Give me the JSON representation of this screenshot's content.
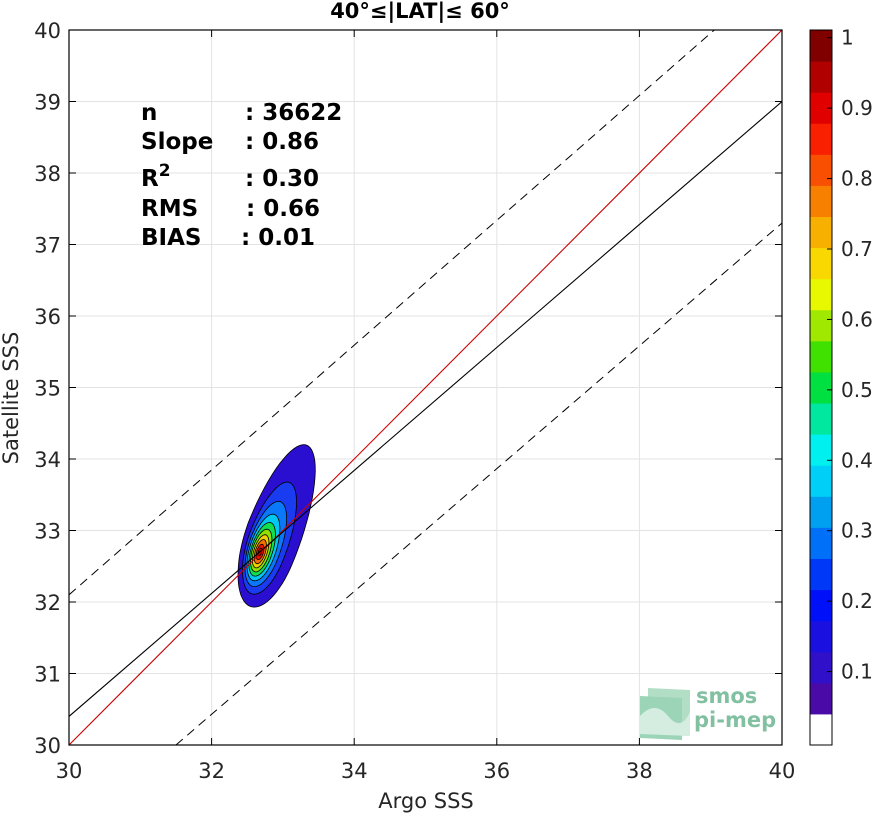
{
  "chart_data": {
    "type": "contour-scatter",
    "title": "40°≤|LAT|≤ 60°",
    "xlabel": "Argo SSS",
    "ylabel": "Satellite SSS",
    "xlim": [
      30,
      40
    ],
    "ylim": [
      30,
      40
    ],
    "xticks": [
      30,
      32,
      34,
      36,
      38,
      40
    ],
    "yticks": [
      30,
      31,
      32,
      33,
      34,
      35,
      36,
      37,
      38,
      39,
      40
    ],
    "grid": true,
    "stats": [
      {
        "key": "n",
        "value": ": 36622"
      },
      {
        "key": "Slope",
        "value": ": 0.86"
      },
      {
        "key": "R",
        "sup": "2",
        "value": ": 0.30"
      },
      {
        "key": "RMS",
        "value": ": 0.66"
      },
      {
        "key": "BIAS",
        "value": ": 0.01"
      }
    ],
    "lines": [
      {
        "name": "one-to-one",
        "style": "solid",
        "color": "#cc0000",
        "points": [
          [
            30,
            30
          ],
          [
            40,
            40
          ]
        ]
      },
      {
        "name": "regression",
        "style": "solid",
        "color": "#000000",
        "points": [
          [
            30,
            30.4
          ],
          [
            40,
            39.0
          ]
        ]
      },
      {
        "name": "upper-bound",
        "style": "dashed",
        "color": "#000000",
        "points": [
          [
            30,
            32.1
          ],
          [
            39.05,
            40
          ]
        ]
      },
      {
        "name": "lower-bound",
        "style": "dashed",
        "color": "#000000",
        "points": [
          [
            31.5,
            30
          ],
          [
            40,
            37.3
          ]
        ]
      }
    ],
    "density_center": [
      32.68,
      32.7
    ],
    "density_levels": [
      {
        "level": 0.1,
        "color": "#2a0fd0",
        "rx": 1.05,
        "ry": 0.82,
        "offset": [
          0.45,
          0.45
        ]
      },
      {
        "level": 0.2,
        "color": "#1a3cf0",
        "rx": 0.78,
        "ry": 0.6,
        "offset": [
          0.28,
          0.28
        ]
      },
      {
        "level": 0.3,
        "color": "#0a78f8",
        "rx": 0.62,
        "ry": 0.48,
        "offset": [
          0.18,
          0.18
        ]
      },
      {
        "level": 0.4,
        "color": "#00c8f0",
        "rx": 0.5,
        "ry": 0.39,
        "offset": [
          0.11,
          0.11
        ]
      },
      {
        "level": 0.5,
        "color": "#10e050",
        "rx": 0.41,
        "ry": 0.32,
        "offset": [
          0.07,
          0.07
        ]
      },
      {
        "level": 0.6,
        "color": "#90e000",
        "rx": 0.33,
        "ry": 0.26,
        "offset": [
          0.04,
          0.04
        ]
      },
      {
        "level": 0.7,
        "color": "#f0d000",
        "rx": 0.26,
        "ry": 0.2,
        "offset": [
          0.02,
          0.02
        ]
      },
      {
        "level": 0.8,
        "color": "#f07000",
        "rx": 0.19,
        "ry": 0.15,
        "offset": [
          0.01,
          0.01
        ]
      },
      {
        "level": 0.9,
        "color": "#f01000",
        "rx": 0.12,
        "ry": 0.1,
        "offset": [
          0.0,
          0.0
        ]
      },
      {
        "level": 1.0,
        "color": "#c00000",
        "rx": 0.06,
        "ry": 0.05,
        "offset": [
          0.0,
          0.0
        ]
      }
    ],
    "colorbar": {
      "ticks": [
        "0.1",
        "0.2",
        "0.3",
        "0.4",
        "0.5",
        "0.6",
        "0.7",
        "0.8",
        "0.9",
        "1"
      ],
      "tick_values": [
        0.1,
        0.2,
        0.3,
        0.4,
        0.5,
        0.6,
        0.7,
        0.8,
        0.9,
        1.0
      ],
      "colors": [
        "#ffffff",
        "#4a0aa8",
        "#3010c8",
        "#1a10e0",
        "#0010f8",
        "#0038f8",
        "#0070f8",
        "#00a0f0",
        "#00d0f8",
        "#00f0f0",
        "#00e8a0",
        "#00e040",
        "#40e000",
        "#a0e800",
        "#e8f800",
        "#f8d800",
        "#f8b000",
        "#f88000",
        "#f85000",
        "#f82000",
        "#e00000",
        "#b00000",
        "#800000"
      ]
    }
  },
  "logo": {
    "line1": "smos",
    "line2": "pi-mep",
    "color": "#5aaa80"
  }
}
